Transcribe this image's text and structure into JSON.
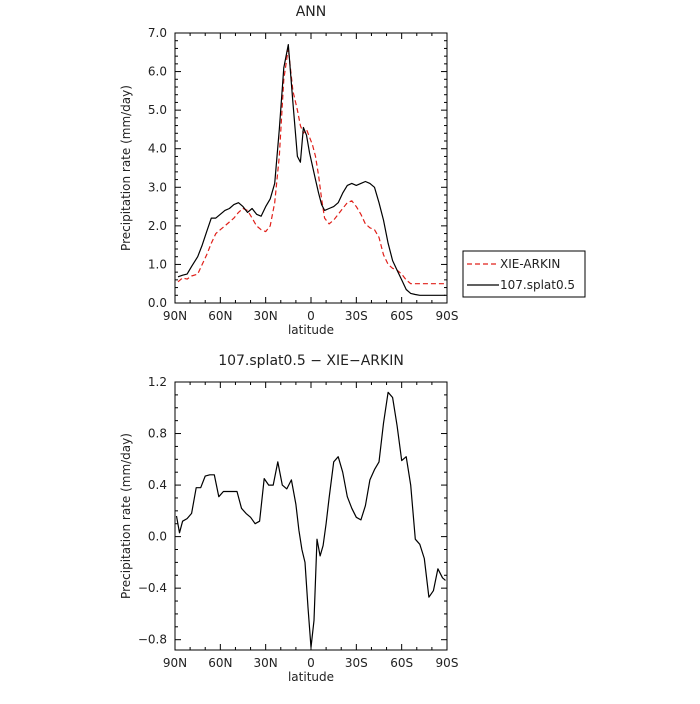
{
  "chart_data": [
    {
      "type": "line",
      "title": "ANN",
      "xlabel": "latitude",
      "ylabel": "Precipitation rate (mm/day)",
      "xticks": [
        "90N",
        "60N",
        "30N",
        "0",
        "30S",
        "60S",
        "90S"
      ],
      "yticks": [
        "0.0",
        "1.0",
        "2.0",
        "3.0",
        "4.0",
        "5.0",
        "6.0",
        "7.0"
      ],
      "xlim": [
        -90,
        90
      ],
      "ylim": [
        0,
        7
      ],
      "x_note": "x values are latitude with north negative and south positive (left to right 90N → 90S)",
      "legend_position": "right",
      "series": [
        {
          "name": "XIE-ARKIN",
          "color": "#e0201a",
          "dash": "dashed",
          "x": [
            -88,
            -85,
            -82,
            -79,
            -75,
            -72,
            -69,
            -66,
            -63,
            -60,
            -57,
            -54,
            -51,
            -48,
            -45,
            -42,
            -39,
            -36,
            -33,
            -30,
            -27,
            -24,
            -21,
            -18,
            -15,
            -12,
            -9,
            -7,
            -5,
            -3,
            -1,
            1,
            3,
            5,
            7,
            9,
            12,
            15,
            18,
            21,
            24,
            27,
            30,
            33,
            36,
            39,
            42,
            45,
            48,
            51,
            54,
            57,
            60,
            63,
            66,
            69,
            72,
            75,
            78,
            81,
            84,
            87,
            89
          ],
          "y": [
            0.55,
            0.65,
            0.62,
            0.7,
            0.75,
            1.0,
            1.25,
            1.55,
            1.8,
            1.9,
            2.0,
            2.1,
            2.2,
            2.35,
            2.45,
            2.4,
            2.2,
            2.0,
            1.9,
            1.85,
            2.0,
            2.6,
            3.8,
            5.8,
            6.6,
            5.5,
            5.0,
            4.6,
            4.4,
            4.5,
            4.3,
            4.1,
            3.8,
            3.3,
            2.7,
            2.2,
            2.05,
            2.15,
            2.3,
            2.45,
            2.6,
            2.65,
            2.5,
            2.3,
            2.05,
            1.95,
            1.9,
            1.7,
            1.25,
            1.0,
            0.9,
            0.85,
            0.75,
            0.6,
            0.5,
            0.5,
            0.5,
            0.5,
            0.5,
            0.5,
            0.5,
            0.5,
            0.5
          ]
        },
        {
          "name": "107.splat0.5",
          "color": "#000000",
          "dash": "solid",
          "x": [
            -88,
            -85,
            -82,
            -79,
            -75,
            -72,
            -69,
            -66,
            -63,
            -60,
            -57,
            -54,
            -51,
            -48,
            -45,
            -42,
            -39,
            -36,
            -33,
            -30,
            -27,
            -24,
            -21,
            -18,
            -15,
            -12,
            -9,
            -7,
            -5,
            -3,
            -1,
            1,
            3,
            5,
            7,
            9,
            12,
            15,
            18,
            21,
            24,
            27,
            30,
            33,
            36,
            39,
            42,
            45,
            48,
            51,
            54,
            57,
            60,
            63,
            66,
            69,
            72,
            75,
            78,
            81,
            84,
            87,
            89
          ],
          "y": [
            0.68,
            0.72,
            0.75,
            0.95,
            1.2,
            1.5,
            1.85,
            2.2,
            2.2,
            2.3,
            2.4,
            2.45,
            2.55,
            2.6,
            2.5,
            2.35,
            2.45,
            2.3,
            2.25,
            2.5,
            2.7,
            3.1,
            4.5,
            6.1,
            6.7,
            5.2,
            3.8,
            3.65,
            4.55,
            4.35,
            3.9,
            3.55,
            3.2,
            2.85,
            2.55,
            2.4,
            2.45,
            2.5,
            2.6,
            2.85,
            3.05,
            3.1,
            3.05,
            3.1,
            3.15,
            3.1,
            3.0,
            2.6,
            2.15,
            1.55,
            1.1,
            0.85,
            0.6,
            0.35,
            0.25,
            0.22,
            0.2,
            0.2,
            0.2,
            0.2,
            0.2,
            0.2,
            0.2
          ]
        }
      ]
    },
    {
      "type": "line",
      "title": "107.splat0.5 − XIE−ARKIN",
      "xlabel": "latitude",
      "ylabel": "Precipitation rate (mm/day)",
      "xticks": [
        "90N",
        "60N",
        "30N",
        "0",
        "30S",
        "60S",
        "90S"
      ],
      "yticks": [
        "−0.8",
        "−0.4",
        "0.0",
        "0.4",
        "0.8",
        "1.2"
      ],
      "xlim": [
        -90,
        90
      ],
      "ylim": [
        -0.88,
        1.2
      ],
      "x_note": "x values are latitude with north negative and south positive (left to right 90N → 90S)",
      "series": [
        {
          "name": "",
          "color": "#000000",
          "dash": "solid",
          "x": [
            -89,
            -87,
            -85,
            -82,
            -79,
            -76,
            -73,
            -70,
            -67,
            -64,
            -61,
            -58,
            -55,
            -52,
            -49,
            -46,
            -43,
            -40,
            -37,
            -34,
            -31,
            -28,
            -25,
            -22,
            -19,
            -16,
            -13,
            -10,
            -8,
            -6,
            -4,
            -2,
            0,
            2,
            4,
            6,
            8,
            10,
            12,
            15,
            18,
            21,
            24,
            27,
            30,
            33,
            36,
            39,
            42,
            45,
            48,
            51,
            54,
            57,
            60,
            63,
            66,
            69,
            72,
            75,
            78,
            81,
            84,
            87,
            89
          ],
          "y": [
            0.16,
            0.03,
            0.12,
            0.14,
            0.18,
            0.38,
            0.38,
            0.47,
            0.48,
            0.48,
            0.31,
            0.35,
            0.35,
            0.35,
            0.35,
            0.22,
            0.18,
            0.15,
            0.1,
            0.12,
            0.45,
            0.4,
            0.4,
            0.58,
            0.4,
            0.37,
            0.44,
            0.25,
            0.05,
            -0.1,
            -0.2,
            -0.55,
            -0.86,
            -0.65,
            -0.02,
            -0.15,
            -0.07,
            0.1,
            0.3,
            0.58,
            0.62,
            0.5,
            0.31,
            0.22,
            0.15,
            0.13,
            0.24,
            0.44,
            0.52,
            0.58,
            0.88,
            1.12,
            1.08,
            0.86,
            0.59,
            0.62,
            0.4,
            -0.02,
            -0.06,
            -0.17,
            -0.47,
            -0.42,
            -0.25,
            -0.32,
            -0.34
          ]
        }
      ]
    }
  ]
}
